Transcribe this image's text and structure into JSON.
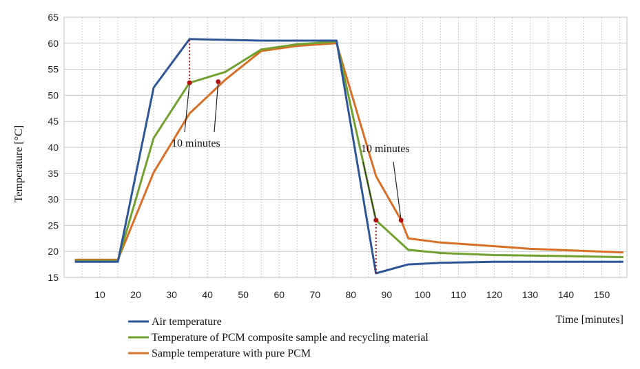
{
  "chart_data": {
    "type": "line",
    "title": "",
    "xlabel": "Time [minutes]",
    "ylabel": "Temperature [°C]",
    "xlim": [
      0,
      157
    ],
    "ylim": [
      15,
      65
    ],
    "grid": true,
    "x_tick_values": [
      10,
      20,
      30,
      40,
      50,
      60,
      70,
      80,
      90,
      100,
      110,
      120,
      130,
      140,
      150
    ],
    "x_tick_labels": [
      "10",
      "20",
      "30",
      "40",
      "50",
      "60",
      "70",
      "80",
      "90",
      "100",
      "110",
      "120",
      "130",
      "140",
      "150"
    ],
    "y_tick_values": [
      15,
      20,
      25,
      30,
      35,
      40,
      45,
      50,
      55,
      60,
      65
    ],
    "y_tick_labels": [
      "15",
      "20",
      "25",
      "30",
      "35",
      "40",
      "45",
      "50",
      "55",
      "60",
      "65"
    ],
    "series": [
      {
        "name": "Air temperature",
        "color": "#2e5597",
        "x": [
          3,
          15,
          25,
          35,
          55,
          76,
          87,
          96,
          105,
          120,
          140,
          156
        ],
        "y": [
          18,
          18,
          51.5,
          60.8,
          60.5,
          60.5,
          15.8,
          17.5,
          17.8,
          18,
          18,
          18
        ]
      },
      {
        "name": "Temperature of PCM composite sample and recycling material",
        "color": "#70a030",
        "x": [
          3,
          15,
          25,
          35,
          45,
          55,
          65,
          76,
          87,
          96,
          105,
          120,
          140,
          156
        ],
        "y": [
          18.2,
          18.2,
          41.8,
          52.4,
          54.5,
          58.8,
          59.8,
          60.3,
          26,
          20.3,
          19.7,
          19.3,
          19.1,
          18.9
        ],
        "annotation_points": [
          {
            "x": 35,
            "y": 52.4
          },
          {
            "x": 87,
            "y": 26
          }
        ]
      },
      {
        "name": "Sample temperature with pure PCM",
        "color": "#d86f27",
        "x": [
          3,
          15,
          25,
          35,
          45,
          55,
          65,
          76,
          87,
          94,
          96,
          105,
          120,
          130,
          156
        ],
        "y": [
          18.4,
          18.4,
          35.2,
          46.5,
          53,
          58.5,
          59.5,
          60,
          34.5,
          26,
          22.5,
          21.7,
          21,
          20.5,
          19.8
        ],
        "annotation_points": [
          {
            "x": 43,
            "y": 52.6
          },
          {
            "x": 94,
            "y": 26
          }
        ]
      }
    ],
    "annotations": [
      {
        "label": "10 minutes",
        "from_x": 35,
        "to_x": 43
      },
      {
        "label": "10 minutes",
        "from_x": 87,
        "to_x": 94
      }
    ],
    "dotted_markers": [
      {
        "x": 35,
        "y_from": 52.4,
        "y_to": 60.8
      },
      {
        "x": 87,
        "y_from": 15.8,
        "y_to": 26
      }
    ],
    "marker_color": "#b01010",
    "grid_color": "#c8c8c8",
    "legend_position": "bottom-left"
  }
}
